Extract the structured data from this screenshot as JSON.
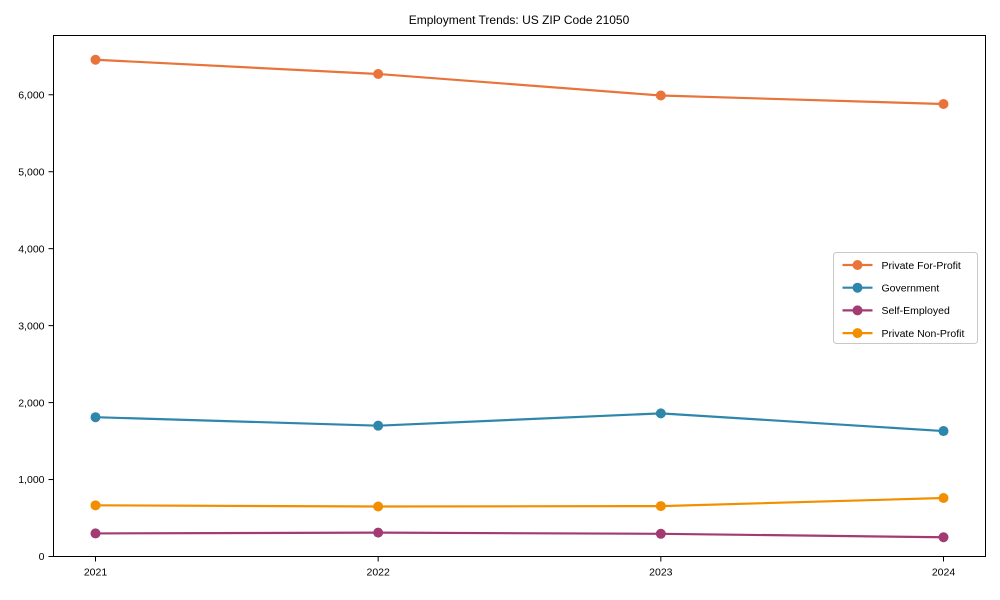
{
  "figure": {
    "background": "#ffffff",
    "axis_color": "#000000",
    "legend_border_color": "#c8c8c8"
  },
  "chart_data": {
    "type": "line",
    "title": "Employment Trends: US ZIP Code 21050",
    "xlabel": "",
    "ylabel": "",
    "x": [
      2021,
      2022,
      2023,
      2024
    ],
    "xtick_labels": [
      "2021",
      "2022",
      "2023",
      "2024"
    ],
    "yticks": [
      0,
      1000,
      2000,
      3000,
      4000,
      5000,
      6000
    ],
    "ytick_labels": [
      "0",
      "1,000",
      "2,000",
      "3,000",
      "4,000",
      "5,000",
      "6,000"
    ],
    "ylim": [
      0,
      6770
    ],
    "grid": false,
    "marker": "circle",
    "legend_position": "center-right",
    "series": [
      {
        "name": "Private For-Profit",
        "color": "#E8743B",
        "values": [
          6455,
          6270,
          5990,
          5880
        ]
      },
      {
        "name": "Government",
        "color": "#2E86AB",
        "values": [
          1810,
          1700,
          1860,
          1630
        ]
      },
      {
        "name": "Self-Employed",
        "color": "#A23B72",
        "values": [
          300,
          310,
          295,
          250
        ]
      },
      {
        "name": "Private Non-Profit",
        "color": "#F18F01",
        "values": [
          665,
          650,
          655,
          760
        ]
      }
    ]
  }
}
